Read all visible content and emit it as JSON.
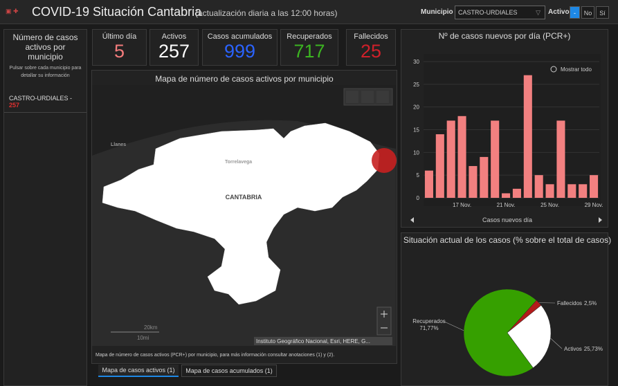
{
  "header": {
    "title": "COVID-19 Situación Cantabria",
    "subtitle": "(actualización diaria a las 12:00 horas)",
    "municipio_label": "Municipio",
    "municipio": "CASTRO-URDIALES",
    "activo_label": "Activo",
    "toggle": [
      "-",
      "No",
      "Sí"
    ]
  },
  "sidebar": {
    "title": "Número de casos activos por municipio",
    "hint": "Pulsar sobre cada municipio para detallar su información",
    "items": [
      {
        "label": "CASTRO-URDIALES -",
        "value": 257
      }
    ]
  },
  "indicators": [
    {
      "label": "Último día",
      "value": 5,
      "color": "#f47c7c"
    },
    {
      "label": "Activos",
      "value": 257,
      "color": "#ffffff"
    },
    {
      "label": "Casos acumulados",
      "value": 999,
      "color": "#2b63ff"
    },
    {
      "label": "Recuperados",
      "value": 717,
      "color": "#3cb521"
    },
    {
      "label": "Fallecidos",
      "value": 25,
      "color": "#d0202a"
    }
  ],
  "map": {
    "title": "Mapa de número de casos activos por municipio",
    "places": [
      "Llanes",
      "Torrelavega",
      "CANTABRIA"
    ],
    "scale": [
      "20km",
      "10mi"
    ],
    "attribution": "Instituto Geográfico Nacional, Esri, HERE, G...",
    "note": "Mapa de número de casos activos (PCR+) por municipio, para más información consultar anotaciones (1) y (2).",
    "tabs": [
      "Mapa de casos activos (1)",
      "Mapa de casos acumulados (1)"
    ]
  },
  "chart_data": [
    {
      "type": "bar",
      "title": "Nº de casos nuevos por día (PCR+)",
      "zoom_label": "Mostrar todo",
      "x_label": "Casos nuevos día",
      "categories": [
        null,
        null,
        null,
        "17 Nov.",
        null,
        null,
        null,
        "21 Nov.",
        null,
        null,
        null,
        "25 Nov.",
        null,
        null,
        null,
        "29 Nov."
      ],
      "values": [
        6,
        14,
        17,
        18,
        7,
        9,
        17,
        1,
        2,
        27,
        5,
        3,
        17,
        3,
        3,
        5
      ],
      "color": "#f28080",
      "ylim": [
        0,
        30
      ],
      "yticks": [
        0,
        5,
        10,
        15,
        20,
        25,
        30
      ],
      "grid": true
    },
    {
      "type": "pie",
      "title": "Situación actual de los casos (% sobre el total de casos)",
      "categories": [
        "Recuperados",
        "Activos",
        "Fallecidos"
      ],
      "values": [
        71.77,
        25.73,
        2.5
      ],
      "value_labels": [
        "71,77%",
        "25,73%",
        "2,5%"
      ],
      "colors": [
        "#36a000",
        "#ffffff",
        "#b31b1b"
      ]
    }
  ]
}
